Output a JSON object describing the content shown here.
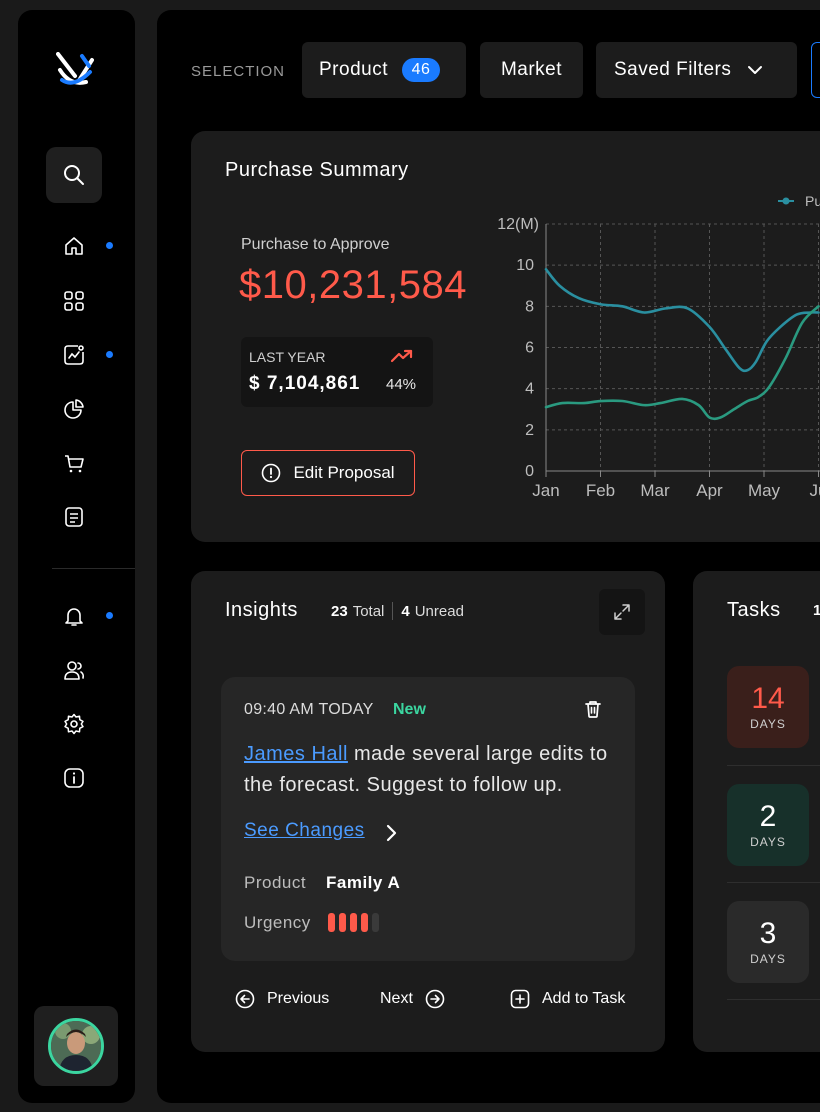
{
  "sidebar": {
    "items": [
      {
        "icon": "home-icon",
        "active_dot": true
      },
      {
        "icon": "grid-icon",
        "active_dot": false
      },
      {
        "icon": "analytics-icon",
        "active_dot": true
      },
      {
        "icon": "pie-chart-icon",
        "active_dot": false
      },
      {
        "icon": "cart-icon",
        "active_dot": false
      },
      {
        "icon": "document-icon",
        "active_dot": false
      },
      {
        "icon": "bell-icon",
        "active_dot": true
      },
      {
        "icon": "users-icon",
        "active_dot": false
      },
      {
        "icon": "gear-icon",
        "active_dot": false
      },
      {
        "icon": "info-icon",
        "active_dot": false
      }
    ]
  },
  "filters": {
    "selection_label": "SELECTION",
    "product_label": "Product",
    "product_count": "46",
    "market_label": "Market",
    "saved_filters_label": "Saved Filters"
  },
  "purchase_summary": {
    "title": "Purchase Summary",
    "to_approve_label": "Purchase to Approve",
    "to_approve_value": "$10,231,584",
    "last_year_label": "LAST YEAR",
    "last_year_value": "$ 7,104,861",
    "last_year_pct": "44%",
    "edit_button": "Edit Proposal",
    "legend_partial": "Pu"
  },
  "chart_data": {
    "type": "line",
    "ylabel": "12(M)",
    "y_ticks": [
      "0",
      "2",
      "4",
      "6",
      "8",
      "10"
    ],
    "categories": [
      "Jan",
      "Feb",
      "Mar",
      "Apr",
      "May",
      "Ju"
    ],
    "ylim": [
      0,
      12
    ],
    "grid": true,
    "legend": "top-right",
    "series": [
      {
        "color": "#2a8fa0",
        "x": [
          0,
          0.25,
          0.6,
          1.0,
          1.4,
          1.8,
          2.2,
          2.6,
          3.0,
          3.3,
          3.55,
          3.7,
          3.85,
          4.05,
          4.3,
          4.6,
          4.85,
          5.0
        ],
        "y": [
          9.8,
          9.0,
          8.4,
          8.1,
          8.0,
          7.7,
          7.9,
          7.9,
          7.0,
          5.9,
          5.0,
          4.9,
          5.3,
          6.3,
          7.0,
          7.6,
          7.7,
          7.7
        ]
      },
      {
        "color": "#2a9a80",
        "x": [
          0,
          0.3,
          0.7,
          1.0,
          1.4,
          1.8,
          2.1,
          2.5,
          2.8,
          3.0,
          3.2,
          3.45,
          3.7,
          3.9,
          4.1,
          4.4,
          4.7,
          5.0
        ],
        "y": [
          3.1,
          3.3,
          3.3,
          3.4,
          3.4,
          3.2,
          3.3,
          3.5,
          3.2,
          2.6,
          2.6,
          3.0,
          3.4,
          3.6,
          4.1,
          5.5,
          7.2,
          8.0
        ]
      }
    ]
  },
  "insights": {
    "title": "Insights",
    "total_count": "23",
    "total_label": "Total",
    "unread_count": "4",
    "unread_label": "Unread",
    "card": {
      "time": "09:40 AM TODAY",
      "status": "New",
      "person": "James Hall",
      "message": "made several large edits to the forecast. Suggest to follow up.",
      "link": "See Changes",
      "product_label": "Product",
      "product_value": "Family A",
      "urgency_label": "Urgency",
      "urgency_level": 4,
      "urgency_max": 5
    },
    "prev_label": "Previous",
    "next_label": "Next",
    "add_task_label": "Add to Task"
  },
  "tasks": {
    "title": "Tasks",
    "count_partial": "1",
    "items": [
      {
        "value": "14",
        "unit": "DAYS",
        "color": "#ff5a4a",
        "bg": "#3a1f1b"
      },
      {
        "value": "2",
        "unit": "DAYS",
        "color": "#ffffff",
        "bg": "#17302a"
      },
      {
        "value": "3",
        "unit": "DAYS",
        "color": "#ffffff",
        "bg": "#2a2a2a"
      }
    ]
  },
  "colors": {
    "accent": "#1a7bff",
    "danger": "#ff5a4a",
    "success": "#3bd6a0",
    "link": "#4b9bff"
  }
}
